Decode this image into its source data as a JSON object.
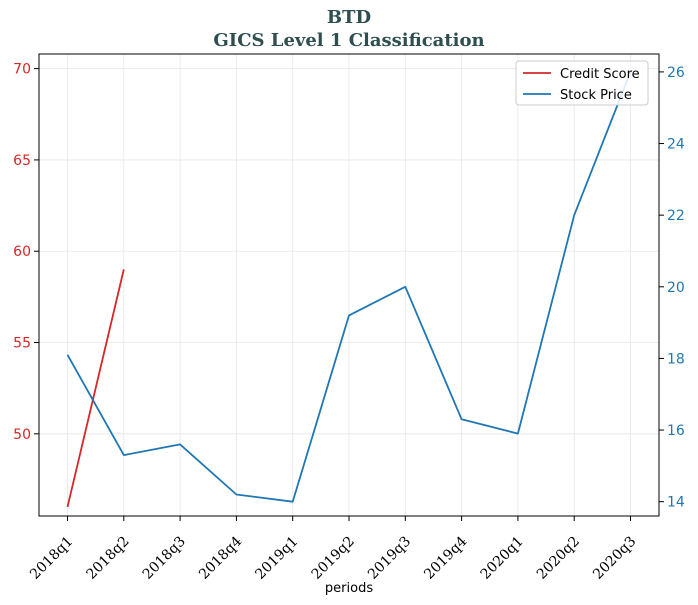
{
  "chart_data": {
    "type": "line",
    "title": "BTD",
    "subtitle": "GICS Level 1 Classification",
    "xlabel": "periods",
    "categories": [
      "2018q1",
      "2018q2",
      "2018q3",
      "2018q4",
      "2019q1",
      "2019q2",
      "2019q3",
      "2019q4",
      "2020q1",
      "2020q2",
      "2020q3"
    ],
    "left_axis": {
      "ylim": [
        45.5,
        70.8
      ],
      "ticks": [
        50,
        55,
        60,
        65,
        70
      ],
      "color": "#d62728"
    },
    "right_axis": {
      "ylim": [
        13.6,
        26.5
      ],
      "ticks": [
        14,
        16,
        18,
        20,
        22,
        24,
        26
      ],
      "color": "#1f77b4"
    },
    "series": [
      {
        "name": "Credit Score",
        "axis": "left",
        "color": "#d62728",
        "values": [
          46.0,
          59.0,
          null,
          null,
          null,
          null,
          null,
          null,
          null,
          null,
          null
        ]
      },
      {
        "name": "Stock Price",
        "axis": "right",
        "color": "#1f77b4",
        "values": [
          18.1,
          15.3,
          15.6,
          14.2,
          14.0,
          19.2,
          20.0,
          16.3,
          15.9,
          22.0,
          26.0
        ]
      }
    ],
    "grid": true,
    "legend": "top-right"
  }
}
